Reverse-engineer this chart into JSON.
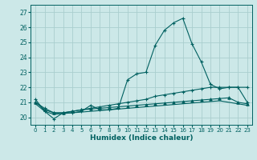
{
  "xlabel": "Humidex (Indice chaleur)",
  "background_color": "#cce8e8",
  "grid_color": "#aacece",
  "line_color": "#006060",
  "xlim": [
    -0.5,
    23.5
  ],
  "ylim": [
    19.5,
    27.5
  ],
  "yticks": [
    20,
    21,
    22,
    23,
    24,
    25,
    26,
    27
  ],
  "xticks": [
    0,
    1,
    2,
    3,
    4,
    5,
    6,
    7,
    8,
    9,
    10,
    11,
    12,
    13,
    14,
    15,
    16,
    17,
    18,
    19,
    20,
    21,
    22,
    23
  ],
  "line1_x": [
    0,
    1,
    2,
    3,
    4,
    5,
    6,
    7,
    8,
    9,
    10,
    11,
    12,
    13,
    14,
    15,
    16,
    17,
    18,
    19,
    20,
    21,
    22,
    23
  ],
  "line1_y": [
    21.2,
    20.4,
    19.9,
    20.3,
    20.3,
    20.4,
    20.8,
    20.5,
    20.5,
    20.6,
    22.5,
    22.9,
    23.0,
    24.8,
    25.8,
    26.3,
    26.6,
    24.9,
    23.7,
    22.2,
    21.9,
    22.0,
    22.0,
    21.0
  ],
  "line2_x": [
    0,
    1,
    2,
    3,
    4,
    5,
    6,
    7,
    8,
    9,
    10,
    11,
    12,
    13,
    14,
    15,
    16,
    17,
    18,
    19,
    20,
    21,
    22,
    23
  ],
  "line2_y": [
    21.0,
    20.6,
    20.3,
    20.3,
    20.4,
    20.5,
    20.6,
    20.7,
    20.8,
    20.9,
    21.0,
    21.1,
    21.2,
    21.4,
    21.5,
    21.6,
    21.7,
    21.8,
    21.9,
    22.0,
    22.0,
    22.0,
    22.0,
    22.0
  ],
  "line3_x": [
    0,
    1,
    2,
    3,
    4,
    5,
    6,
    7,
    8,
    9,
    10,
    11,
    12,
    13,
    14,
    15,
    16,
    17,
    18,
    19,
    20,
    21,
    22,
    23
  ],
  "line3_y": [
    21.0,
    20.5,
    20.3,
    20.3,
    20.4,
    20.5,
    20.55,
    20.6,
    20.65,
    20.7,
    20.75,
    20.8,
    20.85,
    20.9,
    20.95,
    21.0,
    21.05,
    21.1,
    21.15,
    21.2,
    21.25,
    21.3,
    21.0,
    20.9
  ],
  "line4_x": [
    0,
    1,
    2,
    3,
    4,
    5,
    6,
    7,
    8,
    9,
    10,
    11,
    12,
    13,
    14,
    15,
    16,
    17,
    18,
    19,
    20,
    21,
    22,
    23
  ],
  "line4_y": [
    20.9,
    20.4,
    20.2,
    20.25,
    20.3,
    20.35,
    20.4,
    20.45,
    20.5,
    20.55,
    20.6,
    20.65,
    20.7,
    20.75,
    20.8,
    20.85,
    20.9,
    20.95,
    21.0,
    21.05,
    21.1,
    21.0,
    20.9,
    20.8
  ]
}
